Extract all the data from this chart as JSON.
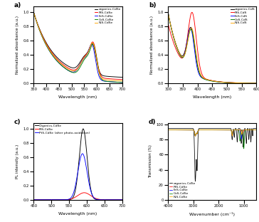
{
  "panel_a": {
    "label": "a)",
    "xlabel": "Wavelength (nm)",
    "ylabel": "Normalized absorbance (a.u.)",
    "xlim": [
      350,
      700
    ],
    "xticks": [
      350,
      400,
      450,
      500,
      550,
      600,
      650,
      700
    ],
    "lines": [
      {
        "label": "organics-CdSe",
        "color": "black"
      },
      {
        "label": "PtS-CdSe",
        "color": "red"
      },
      {
        "label": "FeS-CdSe",
        "color": "blue"
      },
      {
        "label": "CoS-CdSe",
        "color": "green"
      },
      {
        "label": "NiS-CdSe",
        "color": "orange"
      }
    ]
  },
  "panel_b": {
    "label": "b)",
    "xlabel": "Wavelength (nm)",
    "ylabel": "Normalized absorbance (a.u.)",
    "xlim": [
      300,
      600
    ],
    "xticks": [
      300,
      350,
      400,
      450,
      500,
      550,
      600
    ],
    "lines": [
      {
        "label": "organics-CdS",
        "color": "black"
      },
      {
        "label": "PtS-CdS",
        "color": "red"
      },
      {
        "label": "FeS-CdS",
        "color": "blue"
      },
      {
        "label": "CoS-CdS",
        "color": "green"
      },
      {
        "label": "NiS-CdS",
        "color": "orange"
      }
    ]
  },
  "panel_c": {
    "label": "c)",
    "xlabel": "Wavelength (nm)",
    "ylabel": "PL intensity (a.u.)",
    "xlim": [
      450,
      700
    ],
    "xticks": [
      450,
      500,
      550,
      600,
      650,
      700
    ],
    "lines": [
      {
        "label": "Organics-CdSe",
        "color": "black"
      },
      {
        "label": "PtS-CdSe",
        "color": "red"
      },
      {
        "label": "PtS-CdSe (after photo-oxidation)",
        "color": "blue"
      }
    ]
  },
  "panel_d": {
    "label": "d)",
    "xlabel": "Wavenumber (cm⁻¹)",
    "ylabel": "Transmission (%)",
    "xlim": [
      4000,
      500
    ],
    "xticks": [
      4000,
      3000,
      2000,
      1000
    ],
    "lines": [
      {
        "label": "organics-CdSe",
        "color": "black"
      },
      {
        "label": "PtS-CdSe",
        "color": "red"
      },
      {
        "label": "FeS-CdSe",
        "color": "blue"
      },
      {
        "label": "CoS-CdSe",
        "color": "green"
      },
      {
        "label": "NiS-CdSe",
        "color": "orange"
      }
    ]
  },
  "bg_color": "#ffffff"
}
